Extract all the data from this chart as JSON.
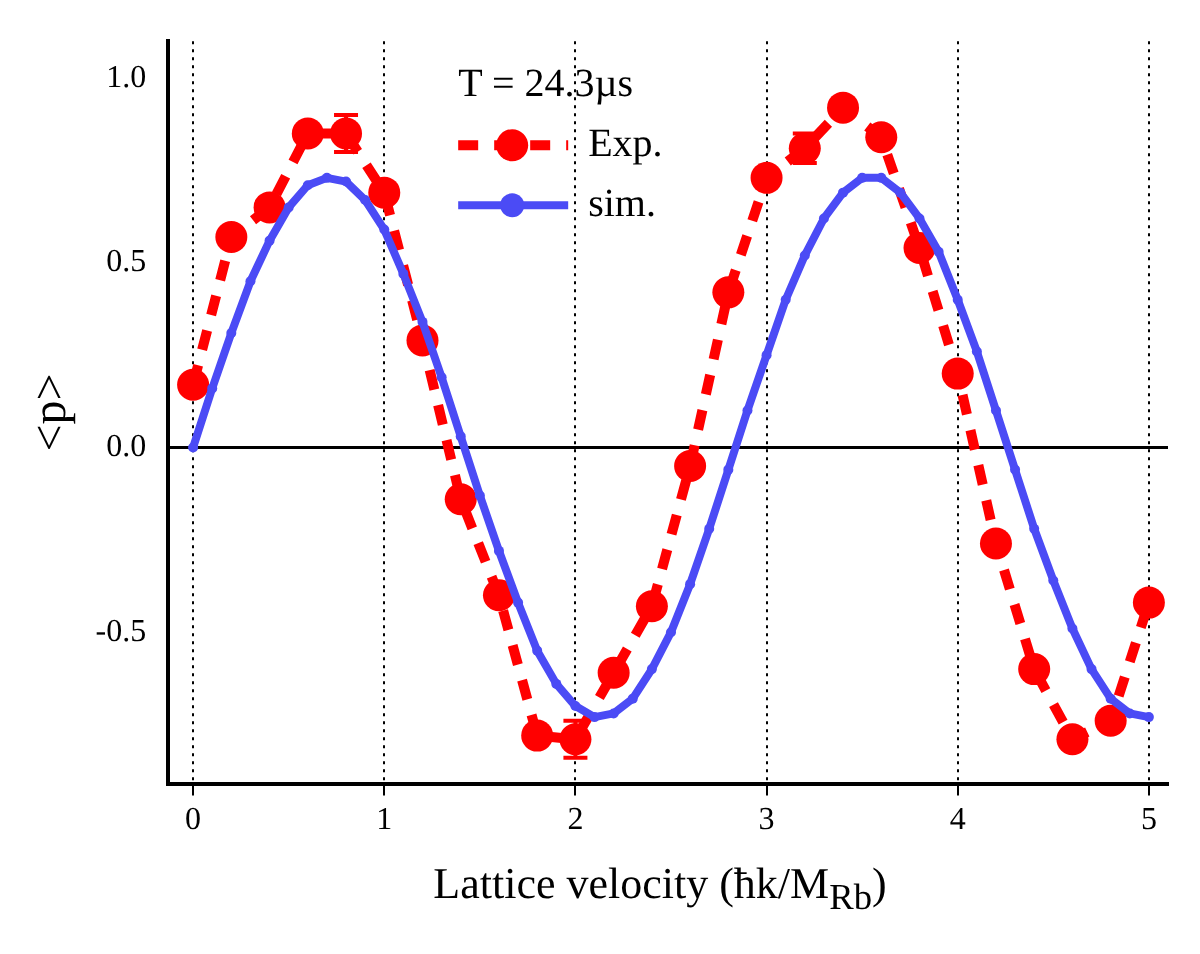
{
  "chart_data": {
    "type": "line",
    "xlabel": "Lattice velocity (ħk/M$_{Rb}$)",
    "ylabel": "<p>",
    "legend_title": "T = 24.3µs",
    "legend": "top",
    "grid": "x",
    "xlim": [
      -0.13,
      5.1
    ],
    "xticks": [
      0,
      1,
      2,
      3,
      4,
      5
    ],
    "ylim": [
      -0.91,
      1.1
    ],
    "yticks": [
      {
        "value": -0.5,
        "label": "-0.5"
      },
      {
        "value": 0,
        "label": "0.0"
      },
      {
        "value": 0.5,
        "label": "0.5"
      },
      {
        "value": 1,
        "label": "1.0"
      }
    ],
    "ref_lines": [
      {
        "axis": "y",
        "value": 0,
        "color": "#000000",
        "line_style": "solid"
      }
    ],
    "series": [
      {
        "name": "Exp.",
        "color": "#ff0000",
        "marker": "circle",
        "line_style": "dashed",
        "x": [
          0,
          0.2,
          0.4,
          0.6,
          0.8,
          1.0,
          1.2,
          1.4,
          1.6,
          1.8,
          2.0,
          2.2,
          2.4,
          2.6,
          2.8,
          3.0,
          3.2,
          3.4,
          3.6,
          3.8,
          4.0,
          4.2,
          4.4,
          4.6,
          4.8,
          5.0
        ],
        "values": [
          0.17,
          0.57,
          0.65,
          0.85,
          0.85,
          0.69,
          0.29,
          -0.14,
          -0.4,
          -0.78,
          -0.79,
          -0.61,
          -0.43,
          -0.05,
          0.42,
          0.73,
          0.81,
          0.92,
          0.84,
          0.54,
          0.2,
          -0.26,
          -0.6,
          -0.79,
          -0.74,
          -0.42
        ],
        "errors": [
          null,
          null,
          null,
          null,
          0.05,
          null,
          null,
          null,
          null,
          null,
          0.05,
          null,
          null,
          null,
          null,
          null,
          0.04,
          null,
          null,
          null,
          null,
          null,
          null,
          null,
          null,
          null
        ]
      },
      {
        "name": "sim.",
        "color": "#4b4bf5",
        "marker": "circle",
        "line_style": "solid",
        "x": [
          0,
          0.1,
          0.2,
          0.3,
          0.4,
          0.5,
          0.6,
          0.7,
          0.8,
          0.9,
          1.0,
          1.1,
          1.2,
          1.3,
          1.4,
          1.5,
          1.6,
          1.7,
          1.8,
          1.9,
          2.0,
          2.1,
          2.2,
          2.3,
          2.4,
          2.5,
          2.6,
          2.7,
          2.8,
          2.9,
          3.0,
          3.1,
          3.2,
          3.3,
          3.4,
          3.5,
          3.6,
          3.7,
          3.8,
          3.9,
          4.0,
          4.1,
          4.2,
          4.3,
          4.4,
          4.5,
          4.6,
          4.7,
          4.8,
          4.9,
          5.0
        ],
        "values": [
          0,
          0.16,
          0.31,
          0.45,
          0.56,
          0.65,
          0.71,
          0.73,
          0.72,
          0.67,
          0.59,
          0.47,
          0.34,
          0.19,
          0.03,
          -0.13,
          -0.28,
          -0.42,
          -0.55,
          -0.64,
          -0.7,
          -0.73,
          -0.72,
          -0.68,
          -0.6,
          -0.5,
          -0.37,
          -0.22,
          -0.06,
          0.1,
          0.25,
          0.4,
          0.52,
          0.62,
          0.69,
          0.73,
          0.73,
          0.69,
          0.62,
          0.53,
          0.4,
          0.26,
          0.1,
          -0.06,
          -0.22,
          -0.36,
          -0.49,
          -0.6,
          -0.68,
          -0.72,
          -0.73
        ]
      }
    ]
  }
}
